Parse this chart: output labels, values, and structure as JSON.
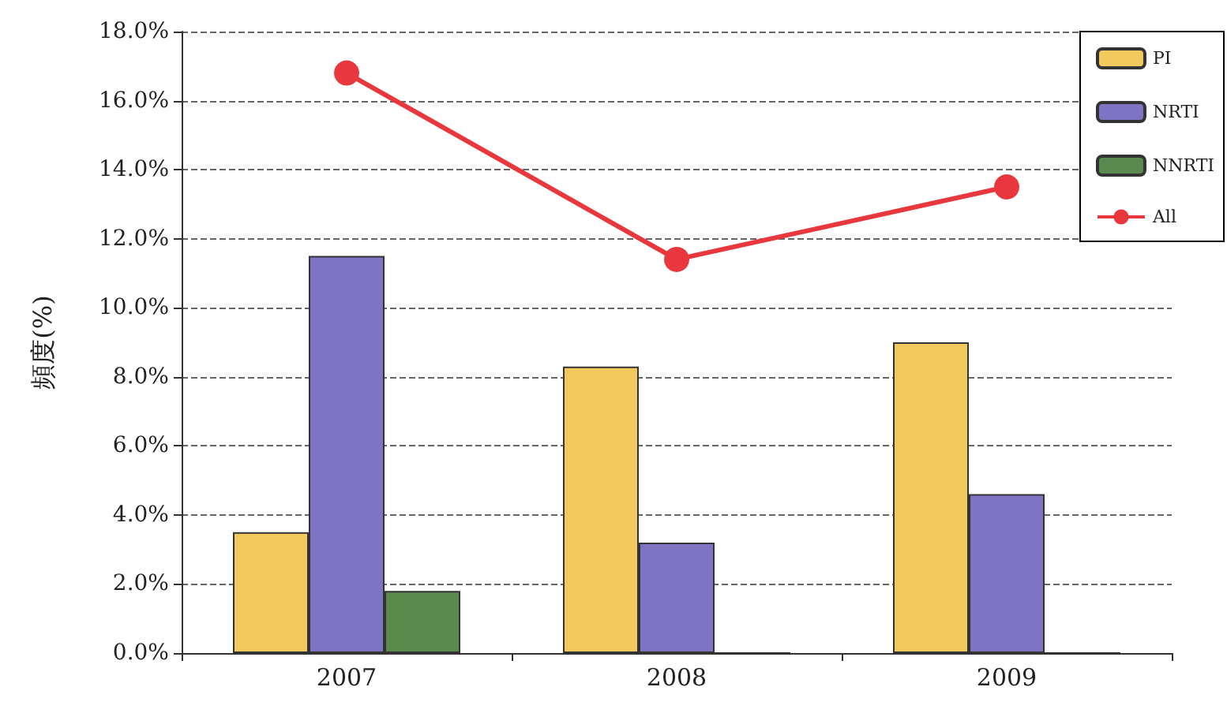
{
  "chart_data": {
    "type": "bar",
    "ylabel": "頻度(%)",
    "categories": [
      "2007",
      "2008",
      "2009"
    ],
    "series": [
      {
        "name": "PI",
        "color": "#f2c95c",
        "values": [
          3.5,
          8.3,
          9.0
        ]
      },
      {
        "name": "NRTI",
        "color": "#7f74c4",
        "values": [
          11.5,
          3.2,
          4.6
        ]
      },
      {
        "name": "NNRTI",
        "color": "#5b8a4f",
        "values": [
          1.8,
          0,
          0
        ]
      },
      {
        "name": "All",
        "type": "line",
        "color": "#e8383d",
        "marker": "circle",
        "values": [
          16.8,
          11.4,
          13.5
        ]
      }
    ],
    "ylim": [
      0,
      18
    ],
    "yticks": [
      {
        "value": 0,
        "label": "0.0%"
      },
      {
        "value": 2,
        "label": "2.0%"
      },
      {
        "value": 4,
        "label": "4.0%"
      },
      {
        "value": 6,
        "label": "6.0%"
      },
      {
        "value": 8,
        "label": "8.0%"
      },
      {
        "value": 10,
        "label": "10.0%"
      },
      {
        "value": 12,
        "label": "12.0%"
      },
      {
        "value": 14,
        "label": "14.0%"
      },
      {
        "value": 16,
        "label": "16.0%"
      },
      {
        "value": 18,
        "label": "18.0%"
      }
    ],
    "grid": "y",
    "legend": "top right"
  }
}
